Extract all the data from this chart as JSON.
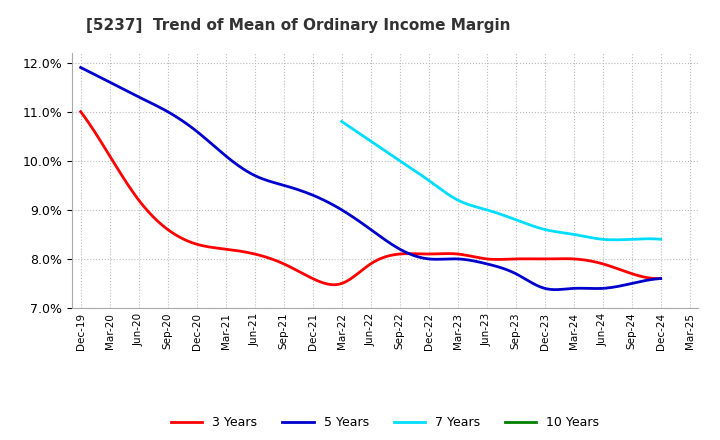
{
  "title": "[5237]  Trend of Mean of Ordinary Income Margin",
  "ylim": [
    0.07,
    0.122
  ],
  "yticks": [
    0.07,
    0.08,
    0.09,
    0.1,
    0.11,
    0.12
  ],
  "background_color": "#ffffff",
  "grid_color": "#bbbbbb",
  "series": {
    "3 Years": {
      "color": "#ff0000",
      "x": [
        0,
        1,
        2,
        3,
        4,
        5,
        6,
        7,
        8,
        9,
        10,
        11,
        12,
        13,
        14,
        15,
        16,
        17,
        18,
        19,
        20
      ],
      "y": [
        0.11,
        0.101,
        0.092,
        0.086,
        0.083,
        0.082,
        0.081,
        0.079,
        0.076,
        0.075,
        0.079,
        0.081,
        0.081,
        0.081,
        0.08,
        0.08,
        0.08,
        0.08,
        0.079,
        0.077,
        0.076
      ]
    },
    "5 Years": {
      "color": "#0000cd",
      "x": [
        0,
        1,
        2,
        3,
        4,
        5,
        6,
        7,
        8,
        9,
        10,
        11,
        12,
        13,
        14,
        15,
        16,
        17,
        18,
        19,
        20
      ],
      "y": [
        0.119,
        0.116,
        0.113,
        0.11,
        0.106,
        0.101,
        0.097,
        0.095,
        0.093,
        0.09,
        0.086,
        0.082,
        0.08,
        0.08,
        0.079,
        0.077,
        0.074,
        0.074,
        0.074,
        0.075,
        0.076
      ]
    },
    "7 Years": {
      "color": "#00ddff",
      "x": [
        9,
        10,
        11,
        12,
        13,
        14,
        15,
        16,
        17,
        18,
        19,
        20
      ],
      "y": [
        0.108,
        0.104,
        0.1,
        0.096,
        0.092,
        0.09,
        0.088,
        0.086,
        0.085,
        0.084,
        0.084,
        0.084
      ]
    },
    "10 Years": {
      "color": "#008000",
      "x": [],
      "y": []
    }
  },
  "x_labels": [
    "Dec-19",
    "Mar-20",
    "Jun-20",
    "Sep-20",
    "Dec-20",
    "Mar-21",
    "Jun-21",
    "Sep-21",
    "Dec-21",
    "Mar-22",
    "Jun-22",
    "Sep-22",
    "Dec-22",
    "Mar-23",
    "Jun-23",
    "Sep-23",
    "Dec-23",
    "Mar-24",
    "Jun-24",
    "Sep-24",
    "Dec-24",
    "Mar-25"
  ],
  "legend_labels": [
    "3 Years",
    "5 Years",
    "7 Years",
    "10 Years"
  ],
  "legend_colors": [
    "#ff0000",
    "#0000cd",
    "#00ddff",
    "#008000"
  ],
  "line_width": 2.0
}
